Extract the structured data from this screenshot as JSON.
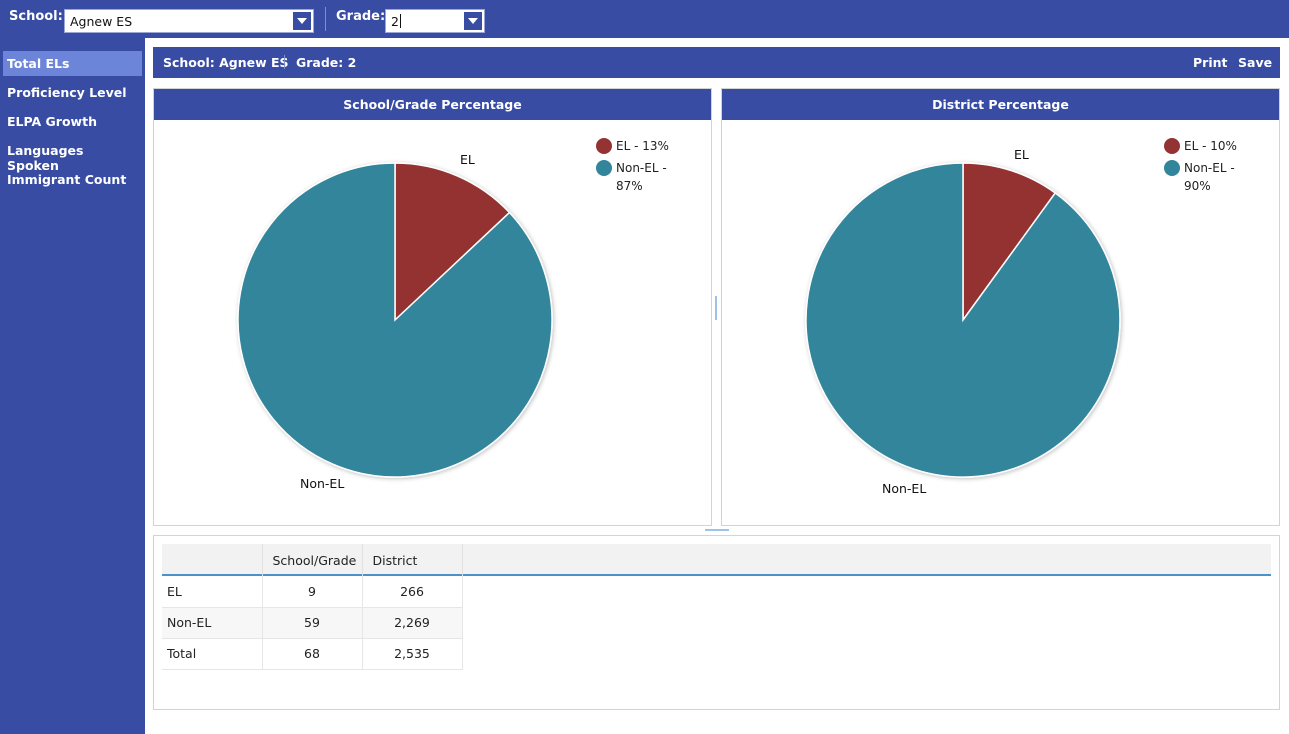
{
  "filters": {
    "school_label": "School:",
    "school_value": "Agnew ES",
    "grade_label": "Grade:",
    "grade_value": "2"
  },
  "sidebar": {
    "items": [
      {
        "label": "Total ELs",
        "active": true
      },
      {
        "label": "Proficiency Level",
        "active": false
      },
      {
        "label": "ELPA Growth",
        "active": false
      },
      {
        "label": "Languages Spoken",
        "active": false
      },
      {
        "label": "Immigrant Count",
        "active": false
      }
    ]
  },
  "infobar": {
    "school": "School: Agnew ES",
    "grade": "Grade: 2",
    "print_label": "Print",
    "save_label": "Save"
  },
  "colors": {
    "brand": "#374ca2",
    "active_nav": "#6d85d9",
    "el": "#943333",
    "non_el": "#33859b"
  },
  "chart_data": [
    {
      "type": "pie",
      "title": "School/Grade Percentage",
      "categories": [
        "EL",
        "Non-EL"
      ],
      "values": [
        13,
        87
      ],
      "legend": [
        "EL - 13%",
        "Non-EL - 87%"
      ],
      "slice_labels": [
        "EL",
        "Non-EL"
      ],
      "legend_position": "top-right"
    },
    {
      "type": "pie",
      "title": "District Percentage",
      "categories": [
        "EL",
        "Non-EL"
      ],
      "values": [
        10,
        90
      ],
      "legend": [
        "EL - 10%",
        "Non-EL - 90%"
      ],
      "slice_labels": [
        "EL",
        "Non-EL"
      ],
      "legend_position": "top-right"
    }
  ],
  "table": {
    "headers": [
      "",
      "School/Grade",
      "District"
    ],
    "rows": [
      [
        "EL",
        "9",
        "266"
      ],
      [
        "Non-EL",
        "59",
        "2,269"
      ],
      [
        "Total",
        "68",
        "2,535"
      ]
    ]
  }
}
